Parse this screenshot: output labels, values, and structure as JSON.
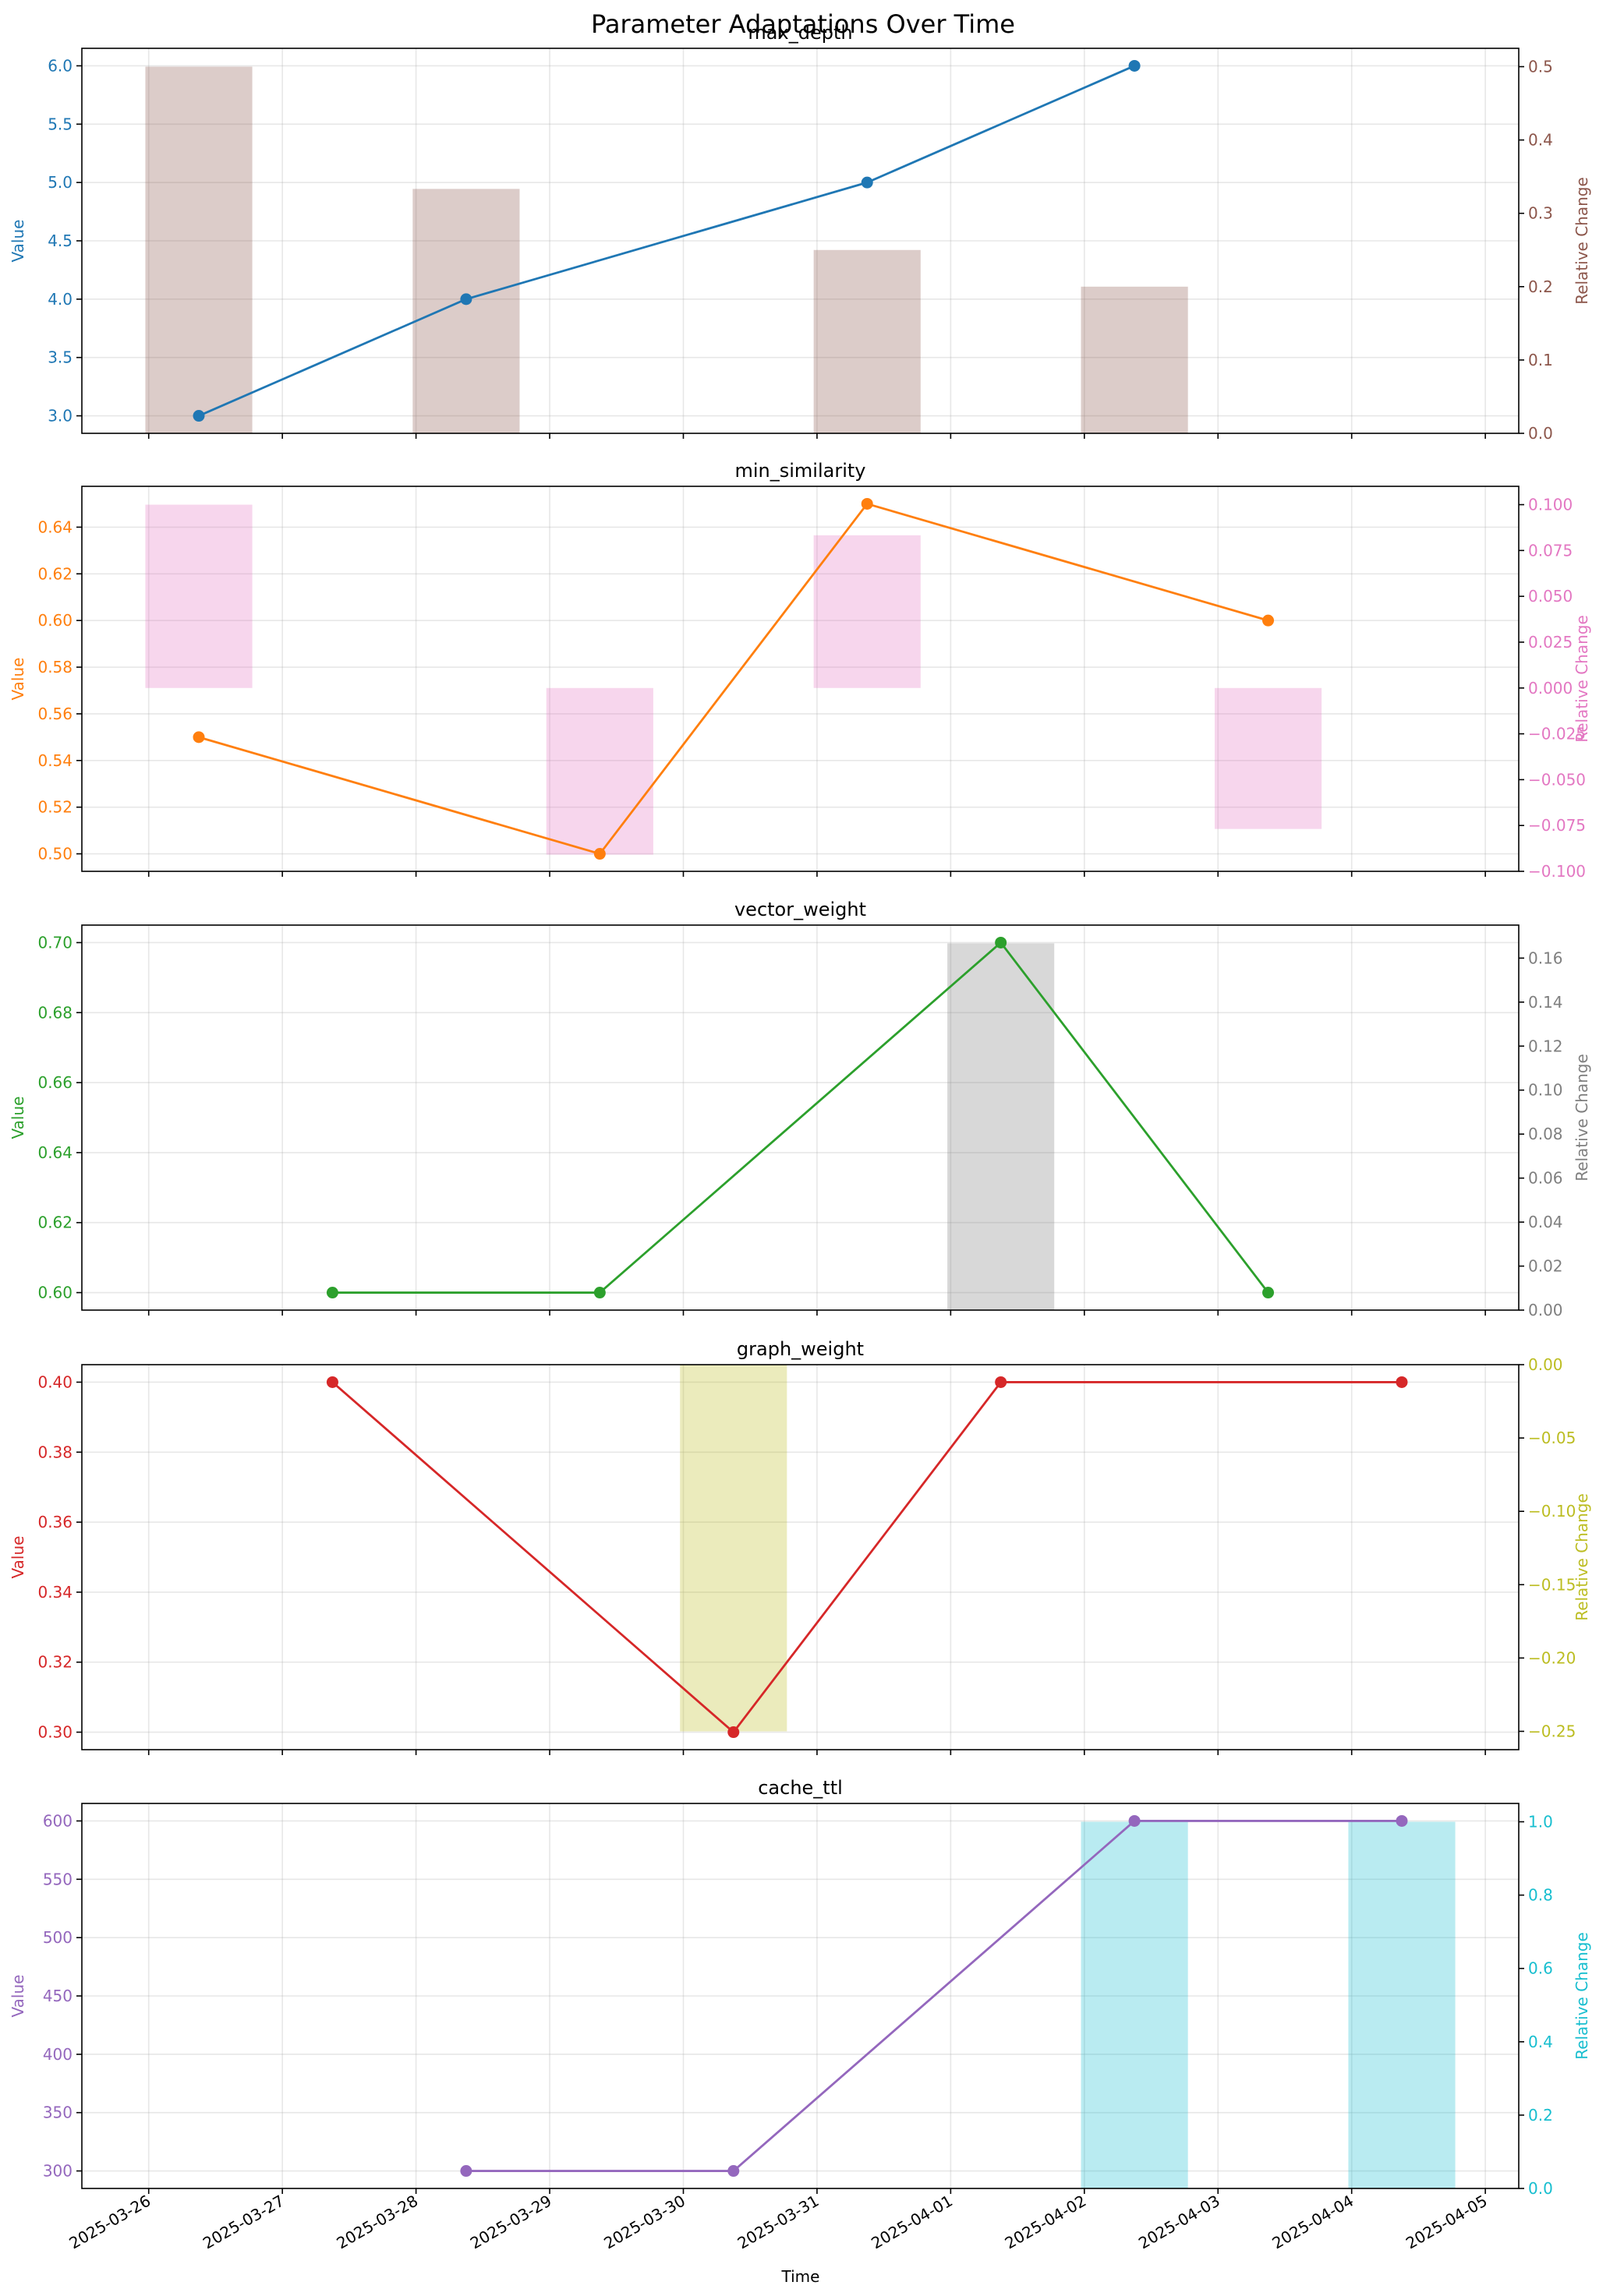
{
  "title": "Parameter Adaptations Over Time",
  "x_axis": {
    "label": "Time",
    "range": [
      "2025-03-25T12:00",
      "2025-04-05T06:00"
    ],
    "ticks": [
      "2025-03-26",
      "2025-03-27",
      "2025-03-28",
      "2025-03-29",
      "2025-03-30",
      "2025-03-31",
      "2025-04-01",
      "2025-04-02",
      "2025-04-03",
      "2025-04-04",
      "2025-04-05"
    ]
  },
  "chart_data": [
    {
      "type": "line",
      "title": "max_depth",
      "ylabel": "Value",
      "ylabel2": "Relative Change",
      "line_color": "#1f77b4",
      "bar_color": "#8c564b",
      "ylim": [
        2.85,
        6.15
      ],
      "yticks": [
        "3.0",
        "3.5",
        "4.0",
        "4.5",
        "5.0",
        "5.5",
        "6.0"
      ],
      "y2lim": [
        0,
        0.525
      ],
      "y2ticks": [
        "0.0",
        "0.1",
        "0.2",
        "0.3",
        "0.4",
        "0.5"
      ],
      "points": [
        {
          "x": "2025-03-26T09:00",
          "y": 3
        },
        {
          "x": "2025-03-28T09:00",
          "y": 4
        },
        {
          "x": "2025-03-31T09:00",
          "y": 5
        },
        {
          "x": "2025-04-02T09:00",
          "y": 6
        }
      ],
      "changes": [
        {
          "x": "2025-03-26T09:00",
          "y": 0.5
        },
        {
          "x": "2025-03-28T09:00",
          "y": 0.3333
        },
        {
          "x": "2025-03-31T09:00",
          "y": 0.25
        },
        {
          "x": "2025-04-02T09:00",
          "y": 0.2
        }
      ]
    },
    {
      "type": "line",
      "title": "min_similarity",
      "ylabel": "Value",
      "ylabel2": "Relative Change",
      "line_color": "#ff7f0e",
      "bar_color": "#e377c2",
      "ylim": [
        0.4925,
        0.6575
      ],
      "yticks": [
        "0.50",
        "0.52",
        "0.54",
        "0.56",
        "0.58",
        "0.60",
        "0.62",
        "0.64"
      ],
      "y2lim": [
        -0.1,
        0.11
      ],
      "y2ticks": [
        "−0.100",
        "−0.075",
        "−0.050",
        "−0.025",
        "0.000",
        "0.025",
        "0.050",
        "0.075",
        "0.100"
      ],
      "points": [
        {
          "x": "2025-03-26T09:00",
          "y": 0.55
        },
        {
          "x": "2025-03-29T09:00",
          "y": 0.5
        },
        {
          "x": "2025-03-31T09:00",
          "y": 0.65
        },
        {
          "x": "2025-04-03T09:00",
          "y": 0.6
        }
      ],
      "changes": [
        {
          "x": "2025-03-26T09:00",
          "y": 0.1
        },
        {
          "x": "2025-03-29T09:00",
          "y": -0.0909
        },
        {
          "x": "2025-03-31T09:00",
          "y": 0.0833
        },
        {
          "x": "2025-04-03T09:00",
          "y": -0.0769
        }
      ]
    },
    {
      "type": "line",
      "title": "vector_weight",
      "ylabel": "Value",
      "ylabel2": "Relative Change",
      "line_color": "#2ca02c",
      "bar_color": "#7f7f7f",
      "ylim": [
        0.595,
        0.705
      ],
      "yticks": [
        "0.60",
        "0.62",
        "0.64",
        "0.66",
        "0.68",
        "0.70"
      ],
      "y2lim": [
        0,
        0.175
      ],
      "y2ticks": [
        "0.00",
        "0.02",
        "0.04",
        "0.06",
        "0.08",
        "0.10",
        "0.12",
        "0.14",
        "0.16"
      ],
      "points": [
        {
          "x": "2025-03-27T09:00",
          "y": 0.6
        },
        {
          "x": "2025-03-29T09:00",
          "y": 0.6
        },
        {
          "x": "2025-04-01T09:00",
          "y": 0.7
        },
        {
          "x": "2025-04-03T09:00",
          "y": 0.6
        }
      ],
      "changes": [
        {
          "x": "2025-04-01T09:00",
          "y": 0.1667
        }
      ]
    },
    {
      "type": "line",
      "title": "graph_weight",
      "ylabel": "Value",
      "ylabel2": "Relative Change",
      "line_color": "#d62728",
      "bar_color": "#bcbd22",
      "ylim": [
        0.295,
        0.405
      ],
      "yticks": [
        "0.30",
        "0.32",
        "0.34",
        "0.36",
        "0.38",
        "0.40"
      ],
      "y2lim": [
        -0.2625,
        0
      ],
      "y2ticks": [
        "−0.25",
        "−0.20",
        "−0.15",
        "−0.10",
        "−0.05",
        "0.00"
      ],
      "points": [
        {
          "x": "2025-03-27T09:00",
          "y": 0.4
        },
        {
          "x": "2025-03-30T09:00",
          "y": 0.3
        },
        {
          "x": "2025-04-01T09:00",
          "y": 0.4
        },
        {
          "x": "2025-04-04T09:00",
          "y": 0.4
        }
      ],
      "changes": [
        {
          "x": "2025-03-30T09:00",
          "y": -0.25
        }
      ]
    },
    {
      "type": "line",
      "title": "cache_ttl",
      "ylabel": "Value",
      "ylabel2": "Relative Change",
      "line_color": "#9467bd",
      "bar_color": "#17becf",
      "ylim": [
        285,
        615
      ],
      "yticks": [
        "300",
        "350",
        "400",
        "450",
        "500",
        "550",
        "600"
      ],
      "y2lim": [
        0,
        1.05
      ],
      "y2ticks": [
        "0.0",
        "0.2",
        "0.4",
        "0.6",
        "0.8",
        "1.0"
      ],
      "points": [
        {
          "x": "2025-03-28T09:00",
          "y": 300
        },
        {
          "x": "2025-03-30T09:00",
          "y": 300
        },
        {
          "x": "2025-04-02T09:00",
          "y": 600
        },
        {
          "x": "2025-04-04T09:00",
          "y": 600
        }
      ],
      "changes": [
        {
          "x": "2025-04-02T09:00",
          "y": 1.0
        },
        {
          "x": "2025-04-04T09:00",
          "y": 1.0
        }
      ]
    }
  ]
}
